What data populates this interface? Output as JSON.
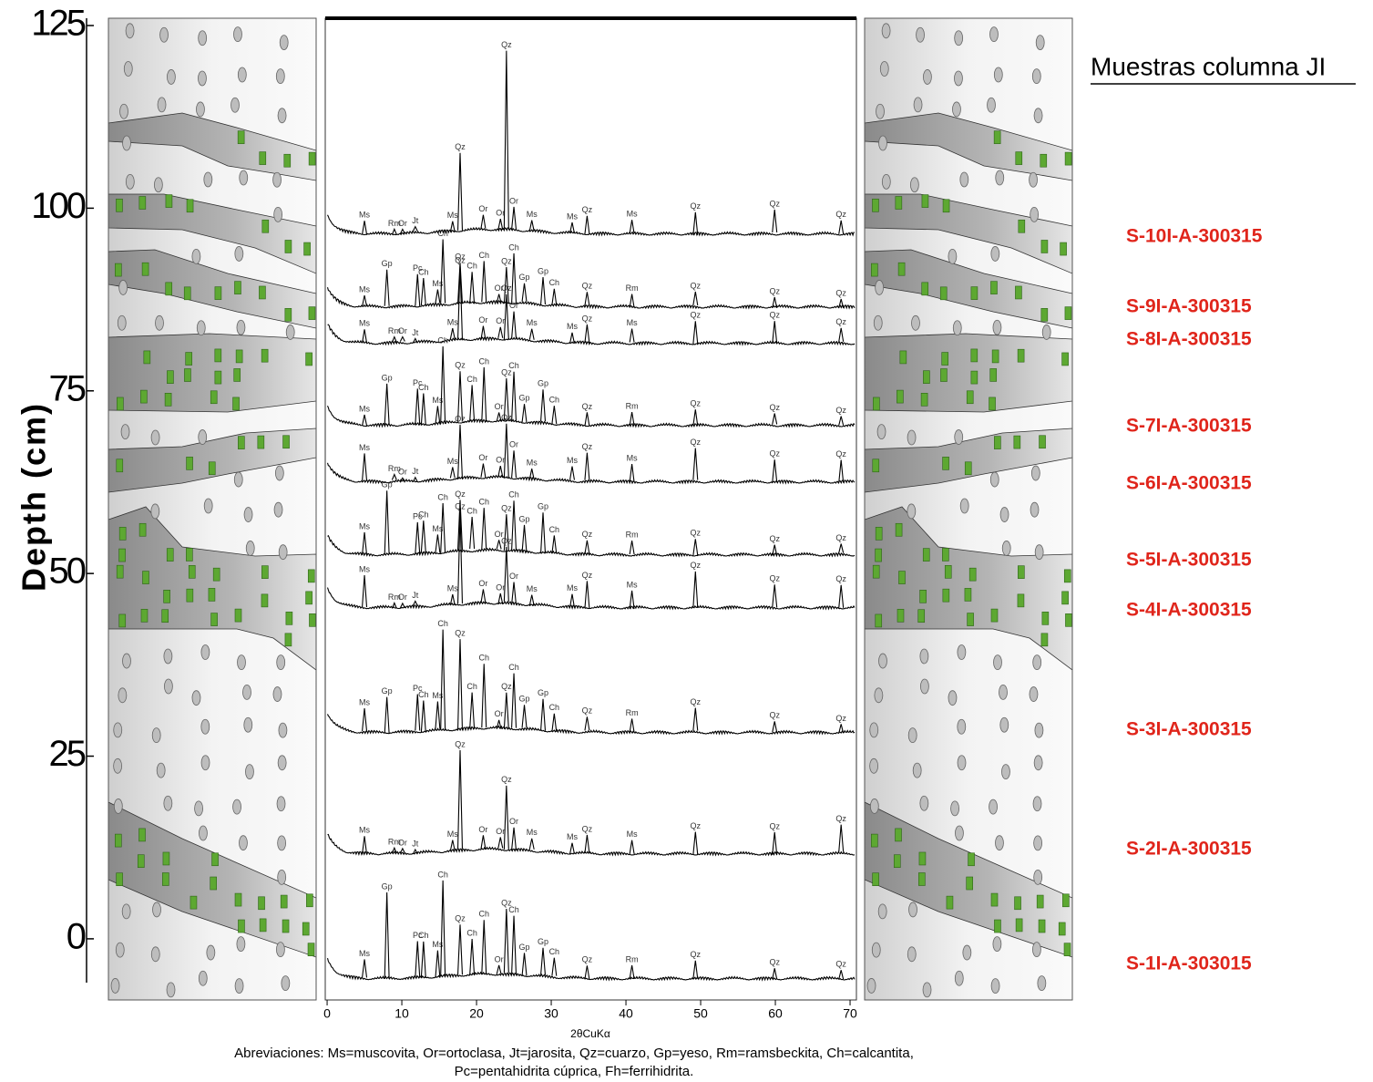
{
  "title": "Muestras columna JI",
  "depth_axis": {
    "label": "Depth (cm)",
    "lim": [
      -6,
      126
    ],
    "ticks": [
      0,
      25,
      50,
      75,
      100,
      125
    ]
  },
  "chart_data": {
    "type": "line",
    "xlabel": "2θCuKα",
    "xlim": [
      -0.25,
      70.85
    ],
    "xticks": [
      0,
      10,
      20,
      30,
      40,
      50,
      60,
      70
    ],
    "samples": [
      {
        "name": "S-10I-A-300315",
        "labels": [
          "Ms",
          "Rm",
          "Or",
          "Jt",
          "Ms",
          "Qz",
          "Or",
          "Or",
          "Qz",
          "Or",
          "Ms",
          "Ms",
          "Qz",
          "Ms",
          "Qz",
          "Qz",
          "Qz"
        ],
        "x": [
          5,
          9,
          10.1,
          11.8,
          16.8,
          17.8,
          20.9,
          23.2,
          24,
          25,
          27.4,
          32.8,
          34.8,
          40.8,
          49.3,
          59.9,
          68.8
        ],
        "i": [
          15,
          6,
          5,
          5,
          12,
          85,
          15,
          12,
          195,
          25,
          12,
          12,
          20,
          15,
          25,
          25,
          15
        ]
      },
      {
        "name": "S-9I-A-300315",
        "labels": [
          "Ms",
          "Gp",
          "Pc",
          "Ch",
          "Ms",
          "Ch",
          "Qz",
          "Ch",
          "Ch",
          "Or",
          "Qz",
          "Ch",
          "Gp",
          "Gp",
          "Ch",
          "Qz",
          "Rm",
          "Qz",
          "Qz",
          "Qz"
        ],
        "x": [
          5,
          8,
          12.1,
          12.9,
          14.8,
          15.5,
          17.8,
          19.4,
          21,
          23,
          24,
          25,
          26.4,
          28.9,
          30.4,
          34.8,
          40.8,
          49.3,
          59.9,
          68.8
        ],
        "i": [
          12,
          40,
          35,
          30,
          15,
          70,
          45,
          35,
          45,
          10,
          40,
          55,
          20,
          30,
          18,
          15,
          15,
          15,
          12,
          10
        ]
      },
      {
        "name": "S-8I-A-300315",
        "labels": [
          "Ms",
          "Rm",
          "Or",
          "Jt",
          "Ms",
          "Qz",
          "Or",
          "Or",
          "Qz",
          "Or",
          "Ms",
          "Ms",
          "Qz",
          "Ms",
          "Qz",
          "Qz",
          "Qz"
        ],
        "x": [
          5,
          9,
          10.1,
          11.8,
          16.8,
          17.8,
          20.9,
          23.2,
          24,
          25,
          27.4,
          32.8,
          34.8,
          40.8,
          49.3,
          59.9,
          68.8
        ],
        "i": [
          15,
          6,
          5,
          5,
          12,
          80,
          15,
          12,
          50,
          30,
          12,
          12,
          20,
          15,
          25,
          25,
          15
        ]
      },
      {
        "name": "S-7I-A-300315",
        "labels": [
          "Ms",
          "Gp",
          "Pc",
          "Ch",
          "Ms",
          "Ch",
          "Qz",
          "Ch",
          "Ch",
          "Or",
          "Qz",
          "Ch",
          "Gp",
          "Gp",
          "Ch",
          "Qz",
          "Rm",
          "Qz",
          "Qz",
          "Qz"
        ],
        "x": [
          5,
          8,
          12.1,
          12.9,
          14.8,
          15.5,
          17.8,
          19.4,
          21,
          23,
          24,
          25,
          26.4,
          28.9,
          30.4,
          34.8,
          40.8,
          49.3,
          59.9,
          68.8
        ],
        "i": [
          12,
          45,
          40,
          35,
          20,
          85,
          55,
          40,
          60,
          10,
          45,
          55,
          20,
          35,
          20,
          15,
          15,
          18,
          12,
          10
        ]
      },
      {
        "name": "S-6I-A-300315",
        "labels": [
          "Ms",
          "Rm",
          "Or",
          "Jt",
          "Ms",
          "Qz",
          "Or",
          "Or",
          "Qz",
          "Or",
          "Ms",
          "Ms",
          "Qz",
          "Ms",
          "Qz",
          "Qz",
          "Qz"
        ],
        "x": [
          5,
          9,
          10.1,
          11.8,
          16.8,
          17.8,
          20.9,
          23.2,
          24,
          25,
          27.4,
          32.8,
          34.8,
          40.8,
          49.3,
          59.9,
          68.8
        ],
        "i": [
          30,
          6,
          5,
          5,
          12,
          60,
          15,
          12,
          60,
          30,
          12,
          15,
          30,
          20,
          35,
          25,
          25
        ]
      },
      {
        "name": "S-5I-A-300315",
        "labels": [
          "Ms",
          "Gp",
          "Pc",
          "Ch",
          "Ms",
          "Ch",
          "Qz",
          "Ch",
          "Ch",
          "Or",
          "Qz",
          "Ch",
          "Gp",
          "Gp",
          "Ch",
          "Qz",
          "Rm",
          "Qz",
          "Qz",
          "Qz"
        ],
        "x": [
          5,
          8,
          12.1,
          12.9,
          14.8,
          15.5,
          17.8,
          19.4,
          21,
          23,
          24,
          25,
          26.4,
          28.9,
          30.4,
          34.8,
          40.8,
          49.3,
          59.9,
          68.8
        ],
        "i": [
          25,
          70,
          35,
          35,
          20,
          55,
          55,
          35,
          45,
          10,
          40,
          55,
          30,
          45,
          20,
          15,
          15,
          18,
          12,
          10
        ]
      },
      {
        "name": "S-4I-A-300315",
        "labels": [
          "Ms",
          "Rm",
          "Or",
          "Jt",
          "Ms",
          "Qz",
          "Or",
          "Or",
          "Qz",
          "Or",
          "Ms",
          "Ms",
          "Qz",
          "Ms",
          "Qz",
          "Qz",
          "Qz"
        ],
        "x": [
          5,
          9,
          10.1,
          11.8,
          16.8,
          17.8,
          20.9,
          23.2,
          24,
          25,
          27.4,
          32.8,
          34.8,
          40.8,
          49.3,
          59.9,
          68.8
        ],
        "i": [
          35,
          6,
          5,
          5,
          12,
          100,
          15,
          12,
          60,
          25,
          12,
          15,
          30,
          20,
          40,
          25,
          25
        ]
      },
      {
        "name": "S-3I-A-300315",
        "labels": [
          "Ms",
          "Gp",
          "Pc",
          "Ch",
          "Ms",
          "Ch",
          "Qz",
          "Ch",
          "Ch",
          "Or",
          "Qz",
          "Ch",
          "Gp",
          "Gp",
          "Ch",
          "Qz",
          "Rm",
          "Qz",
          "Qz",
          "Qz"
        ],
        "x": [
          5,
          8,
          12.1,
          12.9,
          14.8,
          15.5,
          17.8,
          19.4,
          21,
          23,
          24,
          25,
          26.4,
          28.9,
          30.4,
          34.8,
          40.8,
          49.3,
          59.9,
          68.8
        ],
        "i": [
          25,
          40,
          40,
          35,
          30,
          110,
          100,
          40,
          70,
          10,
          40,
          60,
          25,
          35,
          20,
          15,
          15,
          25,
          12,
          10
        ]
      },
      {
        "name": "S-2I-A-300315",
        "labels": [
          "Ms",
          "Rm",
          "Or",
          "Jt",
          "Ms",
          "Qz",
          "Or",
          "Or",
          "Qz",
          "Or",
          "Ms",
          "Ms",
          "Qz",
          "Ms",
          "Qz",
          "Qz",
          "Qz"
        ],
        "x": [
          5,
          9,
          10.1,
          11.8,
          16.8,
          17.8,
          20.9,
          23.2,
          24,
          25,
          27.4,
          32.8,
          34.8,
          40.8,
          49.3,
          59.9,
          68.8
        ],
        "i": [
          20,
          6,
          5,
          5,
          12,
          108,
          15,
          12,
          70,
          25,
          12,
          12,
          20,
          15,
          25,
          25,
          30
        ]
      },
      {
        "name": "S-1I-A-303015",
        "labels": [
          "Ms",
          "Gp",
          "Pc",
          "Ch",
          "Ms",
          "Ch",
          "Qz",
          "Ch",
          "Ch",
          "Or",
          "Qz",
          "Ch",
          "Gp",
          "Gp",
          "Ch",
          "Qz",
          "Rm",
          "Qz",
          "Qz",
          "Qz"
        ],
        "x": [
          5,
          8,
          12.1,
          12.9,
          14.8,
          15.5,
          17.8,
          19.4,
          21,
          23,
          24,
          25,
          26.4,
          28.9,
          30.4,
          34.8,
          40.8,
          49.3,
          59.9,
          68.8
        ],
        "i": [
          20,
          95,
          40,
          40,
          30,
          105,
          55,
          40,
          60,
          10,
          70,
          65,
          25,
          30,
          20,
          15,
          15,
          20,
          12,
          10
        ]
      }
    ]
  },
  "footer": [
    "Abreviaciones: Ms=muscovita, Or=ortoclasa, Jt=jarosita, Qz=cuarzo, Gp=yeso, Rm=ramsbeckita, Ch=calcantita,",
    "Pc=pentahidrita cúprica, Fh=ferrihidrita."
  ]
}
